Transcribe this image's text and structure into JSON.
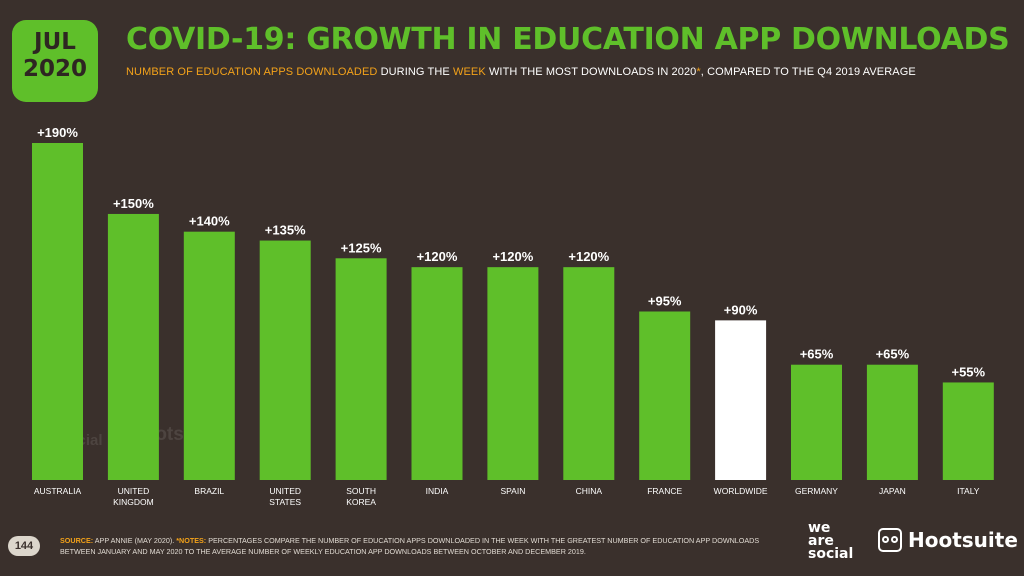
{
  "header": {
    "badge_month": "JUL",
    "badge_year": "2020",
    "title": "COVID-19: GROWTH IN EDUCATION APP DOWNLOADS",
    "subtitle_parts": [
      {
        "text": "NUMBER OF EDUCATION APPS DOWNLOADED",
        "highlight": true
      },
      {
        "text": " DURING THE ",
        "highlight": false
      },
      {
        "text": "WEEK",
        "highlight": true
      },
      {
        "text": " WITH THE MOST DOWNLOADS IN 2020",
        "highlight": false
      },
      {
        "text": "*",
        "highlight": true
      },
      {
        "text": ", COMPARED TO THE Q4 2019 AVERAGE",
        "highlight": false
      }
    ]
  },
  "colors": {
    "bar": "#5fbf2a",
    "highlight_bar": "#ffffff",
    "background": "#3a302c",
    "accent": "#f3a21a"
  },
  "chart_data": {
    "type": "bar",
    "categories": [
      "AUSTRALIA",
      "UNITED KINGDOM",
      "BRAZIL",
      "UNITED STATES",
      "SOUTH KOREA",
      "INDIA",
      "SPAIN",
      "CHINA",
      "FRANCE",
      "WORLDWIDE",
      "GERMANY",
      "JAPAN",
      "ITALY"
    ],
    "category_lines": [
      [
        "AUSTRALIA"
      ],
      [
        "UNITED",
        "KINGDOM"
      ],
      [
        "BRAZIL"
      ],
      [
        "UNITED",
        "STATES"
      ],
      [
        "SOUTH",
        "KOREA"
      ],
      [
        "INDIA"
      ],
      [
        "SPAIN"
      ],
      [
        "CHINA"
      ],
      [
        "FRANCE"
      ],
      [
        "WORLDWIDE"
      ],
      [
        "GERMANY"
      ],
      [
        "JAPAN"
      ],
      [
        "ITALY"
      ]
    ],
    "values": [
      190,
      150,
      140,
      135,
      125,
      120,
      120,
      120,
      95,
      90,
      65,
      65,
      55
    ],
    "data_labels": [
      "+190%",
      "+150%",
      "+140%",
      "+135%",
      "+125%",
      "+120%",
      "+120%",
      "+120%",
      "+95%",
      "+90%",
      "+65%",
      "+65%",
      "+55%"
    ],
    "highlight_category": "WORLDWIDE",
    "title": "",
    "xlabel": "",
    "ylabel": "",
    "ylim": [
      0,
      190
    ],
    "grid": false,
    "legend": "none"
  },
  "watermark": {
    "brand_left": [
      "we",
      "are",
      "social"
    ],
    "brand_right": "Hootsuite"
  },
  "footer": {
    "page_number": "144",
    "source_label": "SOURCE:",
    "source_text": " APP ANNIE (MAY 2020). ",
    "notes_label": "*NOTES:",
    "notes_text": " PERCENTAGES COMPARE THE NUMBER OF EDUCATION APPS DOWNLOADED IN THE WEEK WITH THE GREATEST NUMBER OF EDUCATION APP DOWNLOADS BETWEEN JANUARY AND MAY 2020 TO THE AVERAGE NUMBER OF WEEKLY EDUCATION APP DOWNLOADS BETWEEN OCTOBER AND DECEMBER 2019.",
    "logo_left": [
      "we",
      "are",
      "social"
    ],
    "logo_right": "Hootsuite"
  }
}
